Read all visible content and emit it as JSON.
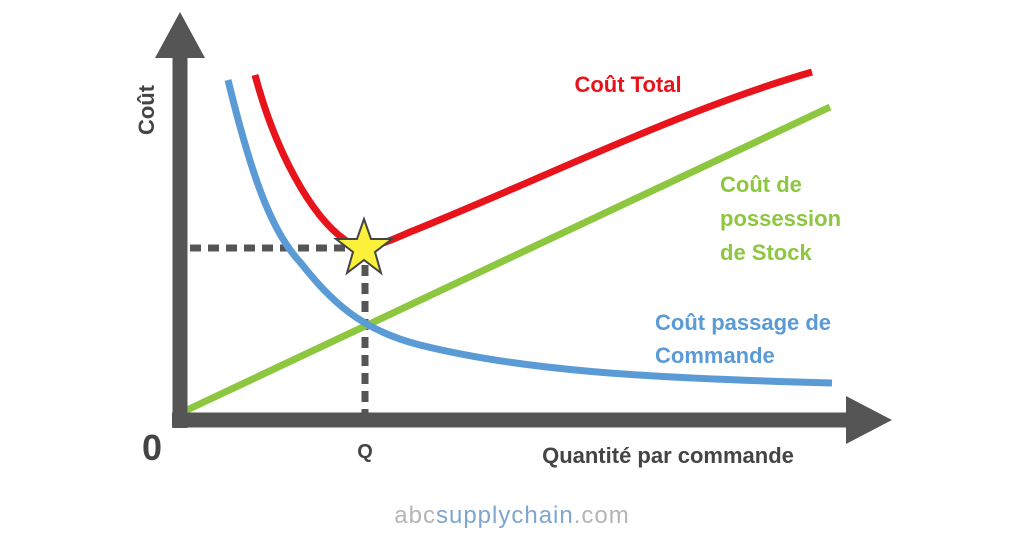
{
  "axes": {
    "y_label": "Coût",
    "origin": "0",
    "q_marker": "Q",
    "x_label": "Quantité par commande"
  },
  "curves": {
    "total": {
      "label": [
        "Coût Total"
      ]
    },
    "holding": {
      "label": [
        "Coût de",
        "possession",
        "de Stock"
      ]
    },
    "ordering": {
      "label": [
        "Coût passage de",
        "Commande"
      ]
    }
  },
  "watermark": {
    "parts": [
      "abc",
      "supplychain",
      ".com"
    ]
  }
}
